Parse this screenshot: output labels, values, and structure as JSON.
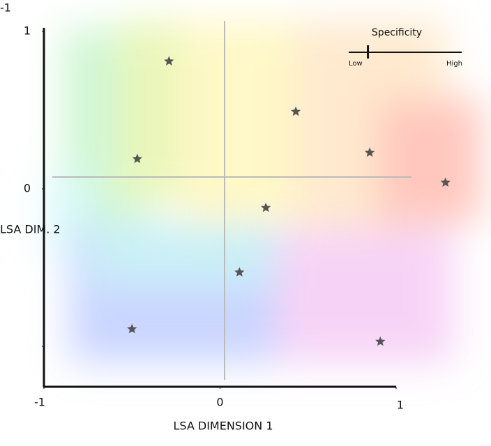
{
  "chart_data": {
    "type": "scatter",
    "x_label": "LSA DIMENSION 1",
    "y_label": "LSA DIM. 2",
    "x": [
      -0.29,
      0.43,
      -0.47,
      0.85,
      1.28,
      0.26,
      0.11,
      -0.5,
      0.91
    ],
    "values": [
      0.81,
      0.49,
      0.19,
      0.23,
      0.04,
      -0.12,
      -0.53,
      -0.89,
      -0.97
    ],
    "color": "#555555",
    "xlim": [
      -1,
      1
    ],
    "ylim": [
      -1,
      1
    ],
    "xticks": [
      -1,
      0,
      1
    ],
    "yticks": [
      -1,
      0,
      1
    ],
    "slider": {
      "title": "Specificity",
      "low": "Low",
      "high": "High",
      "value": 0.17
    }
  }
}
